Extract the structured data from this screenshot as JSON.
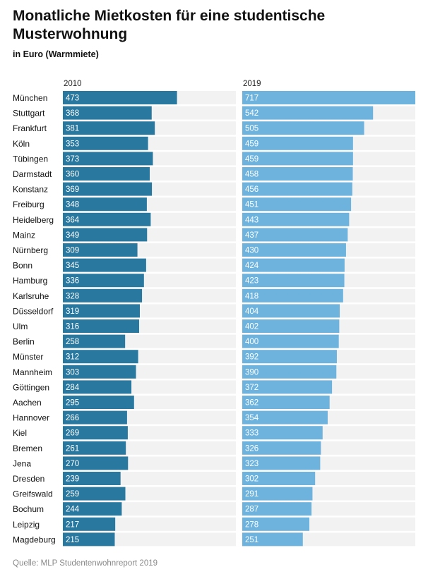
{
  "title": "Monatliche Mietkosten für eine studentische Musterwohnung",
  "subtitle": "in Euro (Warmmiete)",
  "source": "Quelle: MLP Studentenwohnreport 2019",
  "chart_data": {
    "type": "bar",
    "orientation": "horizontal",
    "title": "Monatliche Mietkosten für eine studentische Musterwohnung",
    "subtitle": "in Euro (Warmmiete)",
    "xlim": [
      0,
      720
    ],
    "grid": false,
    "categories": [
      "München",
      "Stuttgart",
      "Frankfurt",
      "Köln",
      "Tübingen",
      "Darmstadt",
      "Konstanz",
      "Freiburg",
      "Heidelberg",
      "Mainz",
      "Nürnberg",
      "Bonn",
      "Hamburg",
      "Karlsruhe",
      "Düsseldorf",
      "Ulm",
      "Berlin",
      "Münster",
      "Mannheim",
      "Göttingen",
      "Aachen",
      "Hannover",
      "Kiel",
      "Bremen",
      "Jena",
      "Dresden",
      "Greifswald",
      "Bochum",
      "Leipzig",
      "Magdeburg"
    ],
    "series": [
      {
        "name": "2010",
        "color": "#2878a0",
        "values": [
          473,
          368,
          381,
          353,
          373,
          360,
          369,
          348,
          364,
          349,
          309,
          345,
          336,
          328,
          319,
          316,
          258,
          312,
          303,
          284,
          295,
          266,
          269,
          261,
          270,
          239,
          259,
          244,
          217,
          215
        ]
      },
      {
        "name": "2019",
        "color": "#6db3dd",
        "values": [
          717,
          542,
          505,
          459,
          459,
          458,
          456,
          451,
          443,
          437,
          430,
          424,
          423,
          418,
          404,
          402,
          400,
          392,
          390,
          372,
          362,
          354,
          333,
          326,
          323,
          302,
          291,
          287,
          278,
          251
        ]
      }
    ],
    "track_color": "#f2f2f2"
  }
}
